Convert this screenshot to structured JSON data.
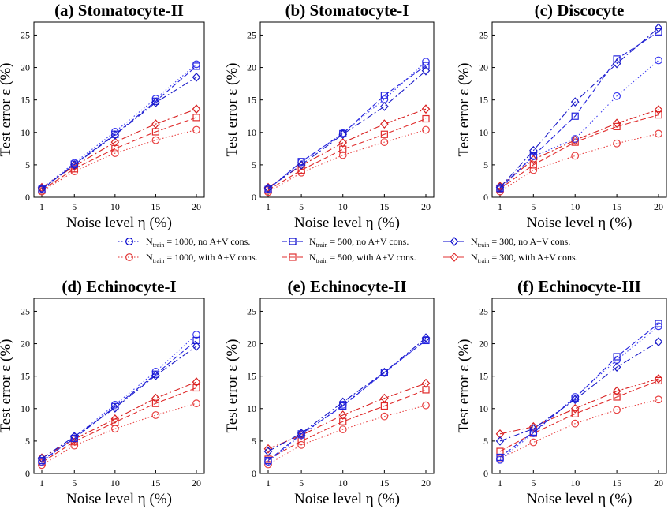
{
  "legend": [
    {
      "label": "1000, no A+V cons.",
      "prefix": "N",
      "sub": "train",
      "color": "#0000cc",
      "marker": "circle",
      "dash": "1.5,2.5"
    },
    {
      "label": "500, no A+V cons.",
      "prefix": "N",
      "sub": "train",
      "color": "#0000cc",
      "marker": "square",
      "dash": "7,3"
    },
    {
      "label": "300, no A+V cons.",
      "prefix": "N",
      "sub": "train",
      "color": "#0000cc",
      "marker": "diamond",
      "dash": "9,3,2,3"
    },
    {
      "label": "1000, with A+V cons.",
      "prefix": "N",
      "sub": "train",
      "color": "#e03030",
      "marker": "circle",
      "dash": "1.5,2.5"
    },
    {
      "label": "500, with A+V cons.",
      "prefix": "N",
      "sub": "train",
      "color": "#e03030",
      "marker": "square",
      "dash": "7,3"
    },
    {
      "label": "300, with A+V cons.",
      "prefix": "N",
      "sub": "train",
      "color": "#e03030",
      "marker": "diamond",
      "dash": "9,3,2,3"
    }
  ],
  "chart_data": [
    {
      "type": "line",
      "title": "(a) Stomatocyte-II",
      "xlabel": "Noise level η (%)",
      "ylabel": "Test error ε (%)",
      "x": [
        1,
        5,
        10,
        15,
        20
      ],
      "ylim": [
        0,
        27
      ],
      "yticks": [
        0,
        5,
        10,
        15,
        20,
        25
      ],
      "series": [
        {
          "name": "Ntrain = 1000, no A+V cons.",
          "values": [
            1.4,
            5.3,
            10.1,
            15.2,
            20.5
          ]
        },
        {
          "name": "Ntrain = 500, no A+V cons.",
          "values": [
            1.2,
            5.1,
            9.7,
            14.8,
            20.2
          ]
        },
        {
          "name": "Ntrain = 300, no A+V cons.",
          "values": [
            1.3,
            5.0,
            9.6,
            14.6,
            18.5
          ]
        },
        {
          "name": "Ntrain = 1000, with A+V cons.",
          "values": [
            0.9,
            4.0,
            6.8,
            8.8,
            10.4
          ]
        },
        {
          "name": "Ntrain = 500, with A+V cons.",
          "values": [
            1.1,
            4.4,
            7.5,
            10.1,
            12.3
          ]
        },
        {
          "name": "Ntrain = 300, with A+V cons.",
          "values": [
            1.5,
            4.8,
            8.5,
            11.3,
            13.6
          ]
        }
      ]
    },
    {
      "type": "line",
      "title": "(b) Stomatocyte-I",
      "xlabel": "Noise level η (%)",
      "ylabel": "Test error ε (%)",
      "x": [
        1,
        5,
        10,
        15,
        20
      ],
      "ylim": [
        0,
        27
      ],
      "yticks": [
        0,
        5,
        10,
        15,
        20,
        25
      ],
      "series": [
        {
          "name": "Ntrain = 1000, no A+V cons.",
          "values": [
            1.3,
            5.4,
            9.9,
            15.1,
            20.9
          ]
        },
        {
          "name": "Ntrain = 500, no A+V cons.",
          "values": [
            1.2,
            5.5,
            9.8,
            15.7,
            20.3
          ]
        },
        {
          "name": "Ntrain = 300, no A+V cons.",
          "values": [
            1.4,
            5.0,
            9.7,
            14.0,
            19.5
          ]
        },
        {
          "name": "Ntrain = 1000, with A+V cons.",
          "values": [
            0.8,
            3.8,
            6.5,
            8.5,
            10.4
          ]
        },
        {
          "name": "Ntrain = 500, with A+V cons.",
          "values": [
            1.1,
            4.2,
            7.4,
            9.7,
            12.1
          ]
        },
        {
          "name": "Ntrain = 300, with A+V cons.",
          "values": [
            1.5,
            4.9,
            8.4,
            11.3,
            13.6
          ]
        }
      ]
    },
    {
      "type": "line",
      "title": "(c) Discocyte",
      "xlabel": "Noise level η (%)",
      "ylabel": "Test error ε (%)",
      "x": [
        1,
        5,
        10,
        15,
        20
      ],
      "ylim": [
        0,
        27
      ],
      "yticks": [
        0,
        5,
        10,
        15,
        20,
        25
      ],
      "series": [
        {
          "name": "Ntrain = 1000, no A+V cons.",
          "values": [
            1.2,
            6.3,
            9.0,
            15.6,
            21.1
          ]
        },
        {
          "name": "Ntrain = 500, no A+V cons.",
          "values": [
            1.4,
            6.4,
            12.5,
            21.3,
            25.5
          ]
        },
        {
          "name": "Ntrain = 300, no A+V cons.",
          "values": [
            1.5,
            7.2,
            14.7,
            20.6,
            26.1
          ]
        },
        {
          "name": "Ntrain = 1000, with A+V cons.",
          "values": [
            0.9,
            4.2,
            6.4,
            8.3,
            9.8
          ]
        },
        {
          "name": "Ntrain = 500, with A+V cons.",
          "values": [
            1.3,
            5.0,
            8.5,
            10.9,
            12.7
          ]
        },
        {
          "name": "Ntrain = 300, with A+V cons.",
          "values": [
            1.7,
            5.8,
            8.8,
            11.4,
            13.5
          ]
        }
      ]
    },
    {
      "type": "line",
      "title": "(d) Echinocyte-I",
      "xlabel": "Noise level η (%)",
      "ylabel": "Test error ε (%)",
      "x": [
        1,
        5,
        10,
        15,
        20
      ],
      "ylim": [
        0,
        27
      ],
      "yticks": [
        0,
        5,
        10,
        15,
        20,
        25
      ],
      "series": [
        {
          "name": "Ntrain = 1000, no A+V cons.",
          "values": [
            1.8,
            5.6,
            10.6,
            15.7,
            21.4
          ]
        },
        {
          "name": "Ntrain = 500, no A+V cons.",
          "values": [
            2.0,
            5.4,
            10.3,
            15.3,
            20.5
          ]
        },
        {
          "name": "Ntrain = 300, no A+V cons.",
          "values": [
            2.3,
            5.7,
            10.1,
            15.1,
            19.6
          ]
        },
        {
          "name": "Ntrain = 1000, with A+V cons.",
          "values": [
            1.3,
            4.3,
            6.9,
            9.0,
            10.8
          ]
        },
        {
          "name": "Ntrain = 500, with A+V cons.",
          "values": [
            1.7,
            4.9,
            7.9,
            10.8,
            13.2
          ]
        },
        {
          "name": "Ntrain = 300, with A+V cons.",
          "values": [
            2.4,
            5.3,
            8.4,
            11.6,
            14.1
          ]
        }
      ]
    },
    {
      "type": "line",
      "title": "(e) Echinocyte-II",
      "xlabel": "Noise level η (%)",
      "ylabel": "Test error ε (%)",
      "x": [
        1,
        5,
        10,
        15,
        20
      ],
      "ylim": [
        0,
        27
      ],
      "yticks": [
        0,
        5,
        10,
        15,
        20,
        25
      ],
      "series": [
        {
          "name": "Ntrain = 1000, no A+V cons.",
          "values": [
            1.8,
            5.9,
            10.6,
            15.5,
            20.6
          ]
        },
        {
          "name": "Ntrain = 500, no A+V cons.",
          "values": [
            2.0,
            6.1,
            10.4,
            15.6,
            20.5
          ]
        },
        {
          "name": "Ntrain = 300, no A+V cons.",
          "values": [
            3.4,
            6.2,
            11.0,
            15.6,
            20.9
          ]
        },
        {
          "name": "Ntrain = 1000, with A+V cons.",
          "values": [
            1.4,
            4.4,
            6.8,
            8.8,
            10.5
          ]
        },
        {
          "name": "Ntrain = 500, with A+V cons.",
          "values": [
            2.2,
            5.0,
            8.0,
            10.4,
            12.9
          ]
        },
        {
          "name": "Ntrain = 300, with A+V cons.",
          "values": [
            3.8,
            5.9,
            9.0,
            11.6,
            13.9
          ]
        }
      ]
    },
    {
      "type": "line",
      "title": "(f) Echinocyte-III",
      "xlabel": "Noise level η (%)",
      "ylabel": "Test error ε (%)",
      "x": [
        1,
        5,
        10,
        15,
        20
      ],
      "ylim": [
        0,
        27
      ],
      "yticks": [
        0,
        5,
        10,
        15,
        20,
        25
      ],
      "series": [
        {
          "name": "Ntrain = 1000, no A+V cons.",
          "values": [
            2.1,
            6.2,
            11.8,
            17.5,
            22.7
          ]
        },
        {
          "name": "Ntrain = 500, no A+V cons.",
          "values": [
            2.5,
            6.4,
            11.6,
            18.0,
            23.1
          ]
        },
        {
          "name": "Ntrain = 300, no A+V cons.",
          "values": [
            5.0,
            6.9,
            11.4,
            16.4,
            20.3
          ]
        },
        {
          "name": "Ntrain = 1000, with A+V cons.",
          "values": [
            2.3,
            4.8,
            7.7,
            9.8,
            11.4
          ]
        },
        {
          "name": "Ntrain = 500, with A+V cons.",
          "values": [
            3.4,
            6.2,
            9.2,
            11.8,
            14.3
          ]
        },
        {
          "name": "Ntrain = 300, with A+V cons.",
          "values": [
            6.1,
            7.2,
            10.0,
            12.7,
            14.6
          ]
        }
      ]
    }
  ]
}
